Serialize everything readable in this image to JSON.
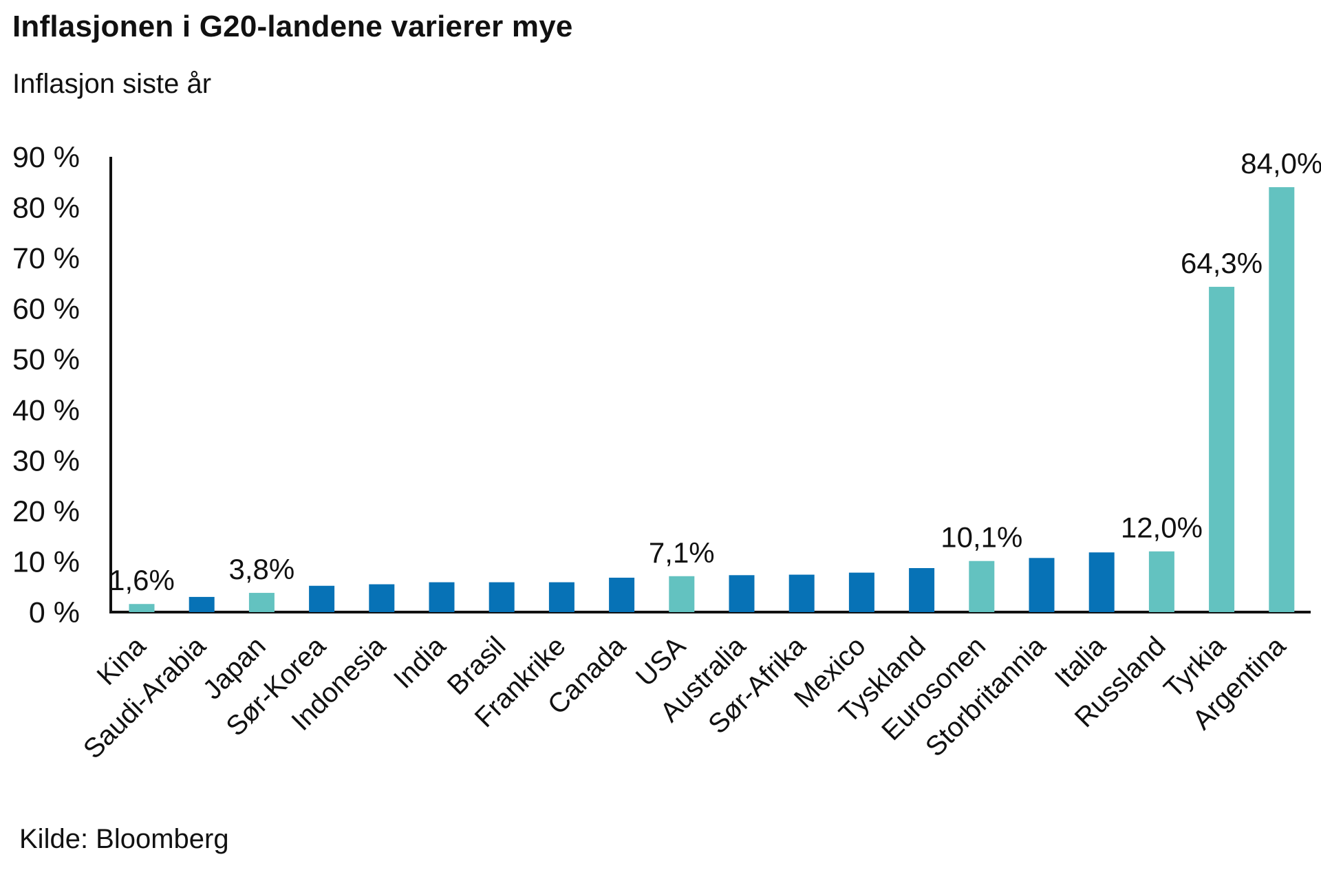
{
  "chart_data": {
    "type": "bar",
    "title": "Inflasjonen i G20-landene varierer mye",
    "subtitle": "Inflasjon siste år",
    "source": "Kilde: Bloomberg",
    "ylim": [
      0,
      90
    ],
    "yticks": [
      0,
      10,
      20,
      30,
      40,
      50,
      60,
      70,
      80,
      90
    ],
    "ytick_labels": [
      "0 %",
      "10 %",
      "20 %",
      "30 %",
      "40 %",
      "50 %",
      "60 %",
      "70 %",
      "80 %",
      "90 %"
    ],
    "grid": false,
    "categories": [
      "Kina",
      "Saudi-Arabia",
      "Japan",
      "Sør-Korea",
      "Indonesia",
      "India",
      "Brasil",
      "Frankrike",
      "Canada",
      "USA",
      "Australia",
      "Sør-Afrika",
      "Mexico",
      "Tyskland",
      "Eurosonen",
      "Storbritannia",
      "Italia",
      "Russland",
      "Tyrkia",
      "Argentina"
    ],
    "values": [
      1.6,
      3.0,
      3.8,
      5.2,
      5.5,
      5.9,
      5.9,
      5.9,
      6.8,
      7.1,
      7.3,
      7.4,
      7.8,
      8.7,
      10.1,
      10.7,
      11.8,
      12.0,
      64.3,
      84.0
    ],
    "highlighted": [
      true,
      false,
      true,
      false,
      false,
      false,
      false,
      false,
      false,
      true,
      false,
      false,
      false,
      false,
      true,
      false,
      false,
      true,
      true,
      true
    ],
    "data_labels": [
      "1,6%",
      "",
      "3,8%",
      "",
      "",
      "",
      "",
      "",
      "",
      "7,1%",
      "",
      "",
      "",
      "",
      "10,1%",
      "",
      "",
      "12,0%",
      "64,3%",
      "84,0%"
    ],
    "colors": {
      "default": "#0772b6",
      "highlight": "#63c2c0",
      "axis": "#111111"
    }
  }
}
